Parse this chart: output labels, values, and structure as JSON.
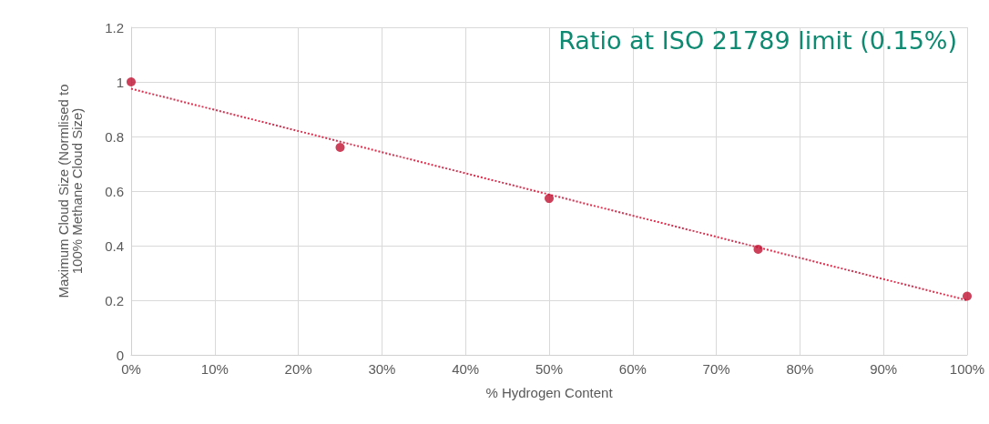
{
  "chart_data": {
    "type": "scatter",
    "title": "Ratio at ISO 21789 limit (0.15%)",
    "xlabel": "% Hydrogen Content",
    "ylabel": "Maximum Cloud Size (Normlised to\n100% Methane Cloud Size)",
    "series": [
      {
        "color": "#c0102f",
        "x": [
          0,
          25,
          50,
          75,
          100
        ],
        "values": [
          1.0,
          0.76,
          0.573,
          0.387,
          0.215
        ],
        "marker": "circle"
      },
      {
        "type": "line",
        "color": "#d9314f",
        "x": [
          0,
          100
        ],
        "values": [
          0.975,
          0.2
        ],
        "line_style": "dotted",
        "marker": "none"
      }
    ],
    "xlim": [
      0,
      100
    ],
    "xticks": [
      {
        "value": 0,
        "label": "0%"
      },
      {
        "value": 10,
        "label": "10%"
      },
      {
        "value": 20,
        "label": "20%"
      },
      {
        "value": 30,
        "label": "30%"
      },
      {
        "value": 40,
        "label": "40%"
      },
      {
        "value": 50,
        "label": "50%"
      },
      {
        "value": 60,
        "label": "60%"
      },
      {
        "value": 70,
        "label": "70%"
      },
      {
        "value": 80,
        "label": "80%"
      },
      {
        "value": 90,
        "label": "90%"
      },
      {
        "value": 100,
        "label": "100%"
      }
    ],
    "ylim": [
      0,
      1.2
    ],
    "yticks": [
      0,
      0.2,
      0.4,
      0.6,
      0.8,
      1,
      1.2
    ],
    "grid": true
  }
}
